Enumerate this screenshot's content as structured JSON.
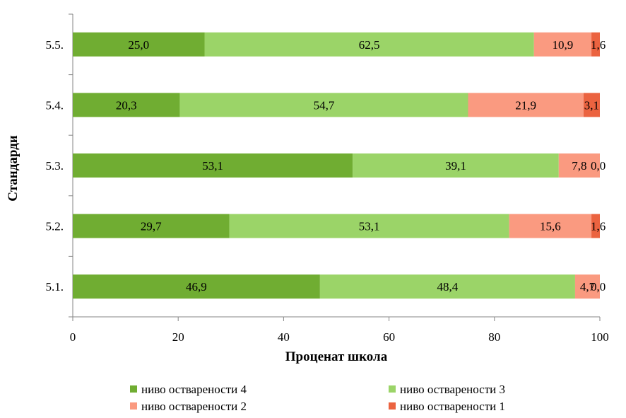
{
  "chart_data": {
    "type": "bar",
    "orientation": "horizontal",
    "stacked": true,
    "categories": [
      "5.1.",
      "5.2.",
      "5.3.",
      "5.4.",
      "5.5."
    ],
    "series": [
      {
        "name": "ниво остварености 4",
        "color": "#70ad32",
        "values": [
          46.9,
          29.7,
          53.1,
          20.3,
          25.0
        ],
        "labels": [
          "46,9",
          "29,7",
          "53,1",
          "20,3",
          "25,0"
        ]
      },
      {
        "name": "ниво остварености 3",
        "color": "#9bd468",
        "values": [
          48.4,
          53.1,
          39.1,
          54.7,
          62.5
        ],
        "labels": [
          "48,4",
          "53,1",
          "39,1",
          "54,7",
          "62,5"
        ]
      },
      {
        "name": "ниво остварености 2",
        "color": "#fa9a80",
        "values": [
          4.7,
          15.6,
          7.8,
          21.9,
          10.9
        ],
        "labels": [
          "4,7",
          "15,6",
          "7,8",
          "21,9",
          "10,9"
        ]
      },
      {
        "name": "ниво остварености 1",
        "color": "#eb6340",
        "values": [
          0.0,
          1.6,
          0.0,
          3.1,
          1.6
        ],
        "labels": [
          "0,0",
          "1,6",
          "0,0",
          "3,1",
          "1,6"
        ]
      }
    ],
    "xlabel": "Проценат школа",
    "ylabel": "Стандарди",
    "xlim": [
      0,
      100
    ],
    "xticks": [
      0,
      20,
      40,
      60,
      80,
      100
    ],
    "grid": false,
    "legend_position": "bottom"
  }
}
